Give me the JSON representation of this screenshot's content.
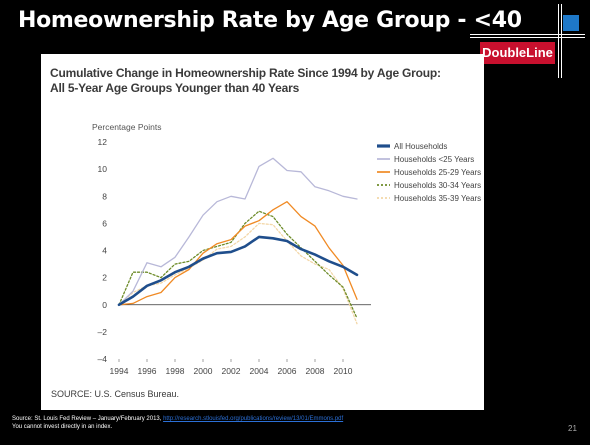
{
  "slide": {
    "title": "Homeownership Rate by Age Group - <40",
    "brand": "DoubleLine",
    "colors": {
      "brand_red": "#c8102e",
      "brand_blue": "#1e78c8"
    },
    "footer_source_prefix": "Source: St. Louis Fed Review – January/February 2013, ",
    "footer_source_link": "http://research.stlouisfed.org/publications/review/13/01/Emmons.pdf",
    "footer_note": "You cannot invest directly in an index.",
    "page_number": "21"
  },
  "chart_data": {
    "type": "line",
    "title": "Cumulative Change in Homeownership Rate Since 1994 by Age Group:",
    "subtitle": "All 5-Year Age Groups Younger than 40 Years",
    "ylabel": "Percentage Points",
    "source": "SOURCE: U.S. Census Bureau.",
    "x_ticks": [
      "1994",
      "1996",
      "1998",
      "2000",
      "2002",
      "2004",
      "2006",
      "2008",
      "2010"
    ],
    "y_ticks": [
      "12",
      "10",
      "8",
      "6",
      "4",
      "2",
      "0",
      "–2",
      "–4"
    ],
    "xlim": [
      1994,
      2012
    ],
    "ylim": [
      -4,
      12
    ],
    "legend_position": "top-right",
    "series": [
      {
        "name": "All Households",
        "color": "#1f4e8c",
        "style": "solid-thick",
        "x": [
          1994,
          1995,
          1996,
          1997,
          1998,
          1999,
          2000,
          2001,
          2002,
          2003,
          2004,
          2005,
          2006,
          2007,
          2008,
          2009,
          2010,
          2011
        ],
        "y": [
          0,
          0.6,
          1.4,
          1.8,
          2.4,
          2.8,
          3.4,
          3.8,
          3.9,
          4.3,
          5.0,
          4.9,
          4.7,
          4.1,
          3.7,
          3.2,
          2.8,
          2.2
        ]
      },
      {
        "name": "Households <25 Years",
        "color": "#b8b8d8",
        "style": "solid",
        "x": [
          1994,
          1995,
          1996,
          1997,
          1998,
          1999,
          2000,
          2001,
          2002,
          2003,
          2004,
          2005,
          2006,
          2007,
          2008,
          2009,
          2010,
          2011
        ],
        "y": [
          0,
          1.0,
          3.1,
          2.8,
          3.5,
          5.0,
          6.6,
          7.6,
          8.0,
          7.8,
          10.2,
          10.8,
          9.9,
          9.8,
          8.7,
          8.4,
          8.0,
          7.8
        ]
      },
      {
        "name": "Households 25-29 Years",
        "color": "#f08a24",
        "style": "solid",
        "x": [
          1994,
          1995,
          1996,
          1997,
          1998,
          1999,
          2000,
          2001,
          2002,
          2003,
          2004,
          2005,
          2006,
          2007,
          2008,
          2009,
          2010,
          2011
        ],
        "y": [
          0,
          0.1,
          0.6,
          0.9,
          2.0,
          2.6,
          3.8,
          4.5,
          4.8,
          5.8,
          6.2,
          7.0,
          7.6,
          6.5,
          5.8,
          4.2,
          2.9,
          0.4
        ]
      },
      {
        "name": "Households 30-34 Years",
        "color": "#6e8c2a",
        "style": "dotted",
        "x": [
          1994,
          1995,
          1996,
          1997,
          1998,
          1999,
          2000,
          2001,
          2002,
          2003,
          2004,
          2005,
          2006,
          2007,
          2008,
          2009,
          2010,
          2011
        ],
        "y": [
          0,
          2.4,
          2.4,
          2.0,
          3.0,
          3.2,
          4.0,
          4.3,
          4.6,
          6.0,
          6.9,
          6.5,
          5.2,
          4.2,
          3.2,
          2.2,
          1.3,
          -1.0
        ]
      },
      {
        "name": "Households 35-39 Years",
        "color": "#f3d7a8",
        "style": "dotted",
        "x": [
          1994,
          1995,
          1996,
          1997,
          1998,
          1999,
          2000,
          2001,
          2002,
          2003,
          2004,
          2005,
          2006,
          2007,
          2008,
          2009,
          2010,
          2011
        ],
        "y": [
          0,
          0.9,
          1.4,
          1.6,
          2.2,
          2.7,
          3.3,
          4.1,
          4.3,
          5.0,
          6.0,
          5.9,
          4.7,
          3.6,
          3.0,
          2.6,
          1.2,
          -1.4
        ]
      }
    ]
  }
}
